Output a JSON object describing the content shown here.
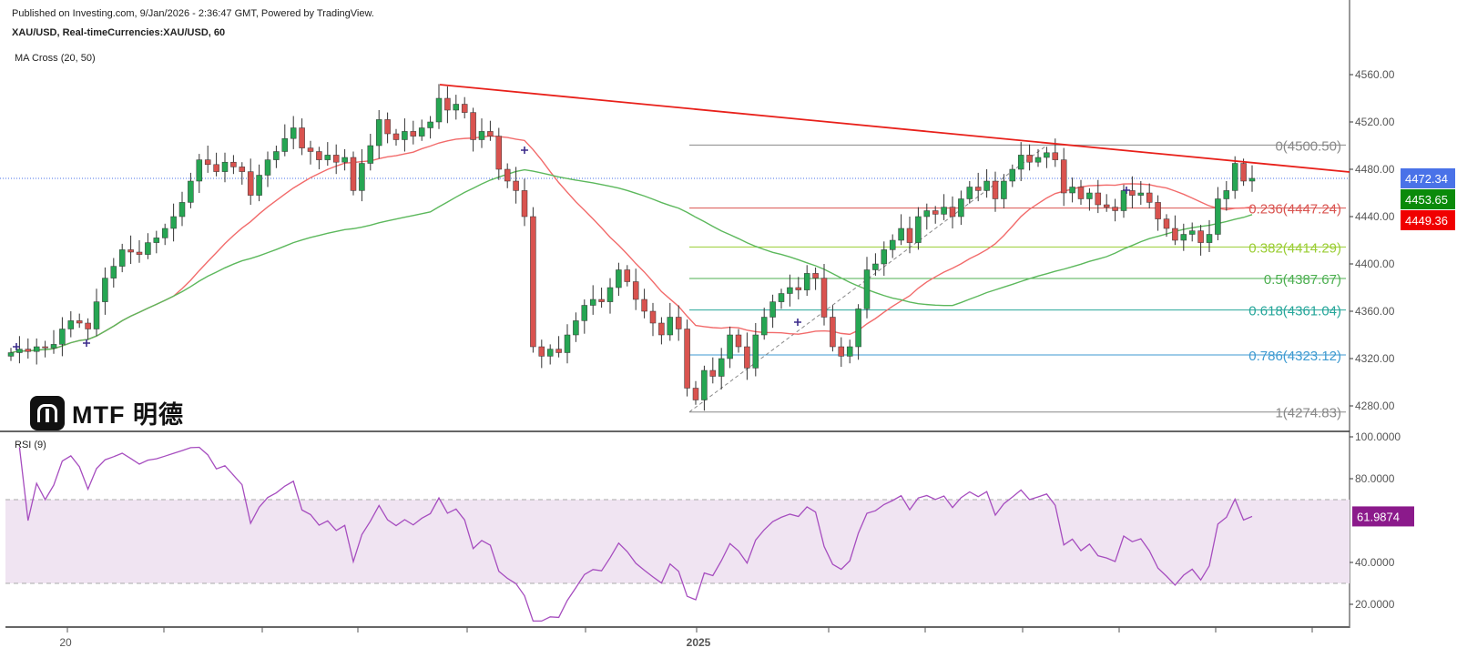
{
  "header": {
    "published": "Published on Investing.com, 9/Jan/2026 - 2:36:47 GMT, Powered by TradingView.",
    "symbol": "XAU/USD, Real-timeCurrencies:XAU/USD, 60",
    "indicator": "MA Cross (20, 50)",
    "rsi_label": "RSI (9)"
  },
  "logo": {
    "text": "MTF 明德"
  },
  "chart_data": [
    {
      "type": "candlestick",
      "title": "XAU/USD, 60",
      "ylim": [
        4260,
        4580
      ],
      "y_ticks": [
        "4560.00",
        "4520.00",
        "4480.00",
        "4440.00",
        "4400.00",
        "4360.00",
        "4320.00",
        "4280.00"
      ],
      "x_tick_labels": [
        "20",
        "2025"
      ],
      "closes": [
        4325,
        4328,
        4326,
        4330,
        4329,
        4332,
        4345,
        4352,
        4350,
        4345,
        4368,
        4388,
        4398,
        4412,
        4410,
        4408,
        4418,
        4422,
        4430,
        4440,
        4452,
        4470,
        4488,
        4484,
        4478,
        4486,
        4482,
        4478,
        4458,
        4475,
        4488,
        4495,
        4506,
        4515,
        4498,
        4495,
        4488,
        4492,
        4486,
        4490,
        4462,
        4485,
        4500,
        4522,
        4510,
        4505,
        4512,
        4508,
        4515,
        4520,
        4540,
        4530,
        4535,
        4528,
        4505,
        4512,
        4508,
        4480,
        4470,
        4462,
        4440,
        4330,
        4322,
        4328,
        4325,
        4340,
        4352,
        4365,
        4370,
        4368,
        4380,
        4395,
        4385,
        4370,
        4360,
        4350,
        4340,
        4355,
        4345,
        4295,
        4285,
        4310,
        4305,
        4320,
        4340,
        4330,
        4312,
        4340,
        4355,
        4368,
        4375,
        4380,
        4378,
        4392,
        4388,
        4355,
        4330,
        4322,
        4330,
        4362,
        4395,
        4400,
        4412,
        4420,
        4430,
        4418,
        4440,
        4445,
        4442,
        4448,
        4440,
        4455,
        4465,
        4462,
        4470,
        4455,
        4470,
        4480,
        4492,
        4486,
        4490,
        4494,
        4488,
        4460,
        4465,
        4455,
        4460,
        4450,
        4448,
        4445,
        4462,
        4458,
        4460,
        4452,
        4438,
        4430,
        4420,
        4425,
        4428,
        4418,
        4425,
        4455,
        4462,
        4485,
        4470,
        4472.34
      ],
      "moving_averages": [
        {
          "period": 20,
          "color": "#f26b6b"
        },
        {
          "period": 50,
          "color": "#5cb85c"
        }
      ],
      "colors": {
        "up": "#26a653",
        "down": "#d9534f",
        "wick": "#333333"
      },
      "last_price": {
        "value": "4472.34",
        "color": "#4a72e8"
      },
      "ma_tags": [
        {
          "value": "4453.65",
          "color": "#0a8a0a"
        },
        {
          "value": "4449.36",
          "color": "#f00000"
        }
      ],
      "fibonacci": [
        {
          "label": "0(4500.50)",
          "price": 4500.5,
          "color": "#888888"
        },
        {
          "label": "0.236(4447.24)",
          "price": 4447.24,
          "color": "#d9534f"
        },
        {
          "label": "0.382(4414.29)",
          "price": 4414.29,
          "color": "#9acd32"
        },
        {
          "label": "0.5(4387.67)",
          "price": 4387.67,
          "color": "#4caf50"
        },
        {
          "label": "0.618(4361.04)",
          "price": 4361.04,
          "color": "#26a69a"
        },
        {
          "label": "0.786(4323.12)",
          "price": 4323.12,
          "color": "#3d9ad1"
        },
        {
          "label": "1(4274.83)",
          "price": 4274.83,
          "color": "#888888"
        }
      ],
      "trendline": {
        "color": "#e8201a",
        "from_price": 4550,
        "to_price": 4476
      }
    },
    {
      "type": "line",
      "title": "RSI (9)",
      "ylim": [
        10,
        100
      ],
      "y_ticks": [
        "100.0000",
        "80.0000",
        "40.0000",
        "20.0000"
      ],
      "band": [
        30,
        70
      ],
      "line_color": "#a64dbf",
      "band_color": "#f0e4f2",
      "last_value": "61.9874"
    }
  ]
}
